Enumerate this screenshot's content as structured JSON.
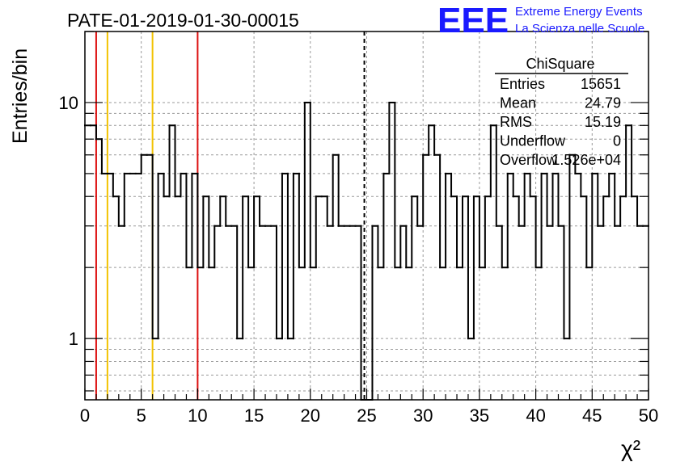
{
  "header": {
    "run_title": "PATE-01-2019-01-30-00015",
    "logo_text": "EEE",
    "org_line1": "Extreme Energy Events",
    "org_line2": "La Scienza nelle Scuole",
    "logo_color": "#1a1aff"
  },
  "stats_box": {
    "title": "ChiSquare",
    "rows": [
      {
        "label": "Entries",
        "value": "15651"
      },
      {
        "label": "Mean",
        "value": "24.79"
      },
      {
        "label": "RMS",
        "value": "15.19"
      },
      {
        "label": "Underflow",
        "value": "0"
      },
      {
        "label": "Overflow",
        "value": "1.526e+04"
      }
    ]
  },
  "chart_data": {
    "type": "histogram",
    "xlabel": "χ²",
    "ylabel": "Entries/bin",
    "xlim": [
      0,
      50
    ],
    "ylim": [
      0.55,
      20
    ],
    "y_scale": "log",
    "grid": true,
    "bin_width": 0.5,
    "x_ticks": [
      "0",
      "5",
      "10",
      "15",
      "20",
      "25",
      "30",
      "35",
      "40",
      "45",
      "50"
    ],
    "y_ticks": [
      "1",
      "10"
    ],
    "bins": [
      {
        "x0": 0.0,
        "y": 8
      },
      {
        "x0": 0.5,
        "y": 8
      },
      {
        "x0": 1.0,
        "y": 7
      },
      {
        "x0": 1.5,
        "y": 5
      },
      {
        "x0": 2.0,
        "y": 5
      },
      {
        "x0": 2.5,
        "y": 4
      },
      {
        "x0": 3.0,
        "y": 3
      },
      {
        "x0": 3.5,
        "y": 5
      },
      {
        "x0": 4.0,
        "y": 5
      },
      {
        "x0": 4.5,
        "y": 5
      },
      {
        "x0": 5.0,
        "y": 6
      },
      {
        "x0": 5.5,
        "y": 6
      },
      {
        "x0": 6.0,
        "y": 1
      },
      {
        "x0": 6.5,
        "y": 5
      },
      {
        "x0": 7.0,
        "y": 4
      },
      {
        "x0": 7.5,
        "y": 8
      },
      {
        "x0": 8.0,
        "y": 4
      },
      {
        "x0": 8.5,
        "y": 5
      },
      {
        "x0": 9.0,
        "y": 2
      },
      {
        "x0": 9.5,
        "y": 5
      },
      {
        "x0": 10.0,
        "y": 2
      },
      {
        "x0": 10.5,
        "y": 4
      },
      {
        "x0": 11.0,
        "y": 2
      },
      {
        "x0": 11.5,
        "y": 3
      },
      {
        "x0": 12.0,
        "y": 4
      },
      {
        "x0": 12.5,
        "y": 3
      },
      {
        "x0": 13.0,
        "y": 3
      },
      {
        "x0": 13.5,
        "y": 1
      },
      {
        "x0": 14.0,
        "y": 4
      },
      {
        "x0": 14.5,
        "y": 2
      },
      {
        "x0": 15.0,
        "y": 4
      },
      {
        "x0": 15.5,
        "y": 3
      },
      {
        "x0": 16.0,
        "y": 3
      },
      {
        "x0": 16.5,
        "y": 3
      },
      {
        "x0": 17.0,
        "y": 1
      },
      {
        "x0": 17.5,
        "y": 5
      },
      {
        "x0": 18.0,
        "y": 1
      },
      {
        "x0": 18.5,
        "y": 5
      },
      {
        "x0": 19.0,
        "y": 2
      },
      {
        "x0": 19.5,
        "y": 10
      },
      {
        "x0": 20.0,
        "y": 2
      },
      {
        "x0": 20.5,
        "y": 4
      },
      {
        "x0": 21.0,
        "y": 4
      },
      {
        "x0": 21.5,
        "y": 3
      },
      {
        "x0": 22.0,
        "y": 6
      },
      {
        "x0": 22.5,
        "y": 3
      },
      {
        "x0": 23.0,
        "y": 3
      },
      {
        "x0": 23.5,
        "y": 3
      },
      {
        "x0": 24.0,
        "y": 3
      },
      {
        "x0": 24.5,
        "y": 0
      },
      {
        "x0": 25.0,
        "y": 0
      },
      {
        "x0": 25.5,
        "y": 3
      },
      {
        "x0": 26.0,
        "y": 2
      },
      {
        "x0": 26.5,
        "y": 5
      },
      {
        "x0": 27.0,
        "y": 10
      },
      {
        "x0": 27.5,
        "y": 2
      },
      {
        "x0": 28.0,
        "y": 3
      },
      {
        "x0": 28.5,
        "y": 2
      },
      {
        "x0": 29.0,
        "y": 4
      },
      {
        "x0": 29.5,
        "y": 3
      },
      {
        "x0": 30.0,
        "y": 6
      },
      {
        "x0": 30.5,
        "y": 8
      },
      {
        "x0": 31.0,
        "y": 6
      },
      {
        "x0": 31.5,
        "y": 2
      },
      {
        "x0": 32.0,
        "y": 5
      },
      {
        "x0": 32.5,
        "y": 4
      },
      {
        "x0": 33.0,
        "y": 2
      },
      {
        "x0": 33.5,
        "y": 4
      },
      {
        "x0": 34.0,
        "y": 1
      },
      {
        "x0": 34.5,
        "y": 4
      },
      {
        "x0": 35.0,
        "y": 2
      },
      {
        "x0": 35.5,
        "y": 4
      },
      {
        "x0": 36.0,
        "y": 8
      },
      {
        "x0": 36.5,
        "y": 3
      },
      {
        "x0": 37.0,
        "y": 2
      },
      {
        "x0": 37.5,
        "y": 5
      },
      {
        "x0": 38.0,
        "y": 4
      },
      {
        "x0": 38.5,
        "y": 3
      },
      {
        "x0": 39.0,
        "y": 5
      },
      {
        "x0": 39.5,
        "y": 4
      },
      {
        "x0": 40.0,
        "y": 2
      },
      {
        "x0": 40.5,
        "y": 5
      },
      {
        "x0": 41.0,
        "y": 3
      },
      {
        "x0": 41.5,
        "y": 5
      },
      {
        "x0": 42.0,
        "y": 3
      },
      {
        "x0": 42.5,
        "y": 1
      },
      {
        "x0": 43.0,
        "y": 6
      },
      {
        "x0": 43.5,
        "y": 5
      },
      {
        "x0": 44.0,
        "y": 4
      },
      {
        "x0": 44.5,
        "y": 2
      },
      {
        "x0": 45.0,
        "y": 5
      },
      {
        "x0": 45.5,
        "y": 3
      },
      {
        "x0": 46.0,
        "y": 4
      },
      {
        "x0": 46.5,
        "y": 5
      },
      {
        "x0": 47.0,
        "y": 3
      },
      {
        "x0": 47.5,
        "y": 4
      },
      {
        "x0": 48.0,
        "y": 8
      },
      {
        "x0": 48.5,
        "y": 4
      },
      {
        "x0": 49.0,
        "y": 3
      },
      {
        "x0": 49.5,
        "y": 3
      }
    ],
    "reference_lines": [
      {
        "x": 1,
        "color": "#dd1111",
        "style": "solid"
      },
      {
        "x": 2,
        "color": "#f2c200",
        "style": "solid"
      },
      {
        "x": 6,
        "color": "#f2c200",
        "style": "solid"
      },
      {
        "x": 10,
        "color": "#dd1111",
        "style": "solid"
      },
      {
        "x": 24.79,
        "color": "#000000",
        "style": "dashed"
      }
    ],
    "line_color": "#000000",
    "grid_color": "#9a9a9a"
  }
}
